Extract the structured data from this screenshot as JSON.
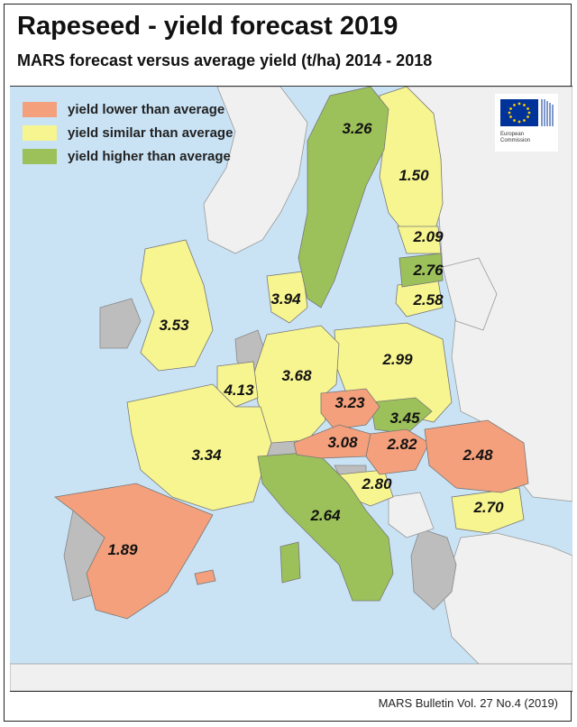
{
  "header": {
    "title": "Rapeseed - yield forecast 2019",
    "subtitle": "MARS forecast versus average yield (t/ha) 2014 - 2018"
  },
  "legend": {
    "items": [
      {
        "label": "yield lower than average",
        "color": "#f4a07c"
      },
      {
        "label": "yield similar than average",
        "color": "#f7f590"
      },
      {
        "label": "yield higher than average",
        "color": "#9cc15a"
      }
    ]
  },
  "colors": {
    "sea": "#c9e3f5",
    "non_eu": "#f0f0f0",
    "no_data": "#bdbdbd",
    "lower": "#f4a07c",
    "similar": "#f7f590",
    "higher": "#9cc15a"
  },
  "logo": {
    "text_line1": "European",
    "text_line2": "Commission"
  },
  "map_values": {
    "sweden": "3.26",
    "finland": "1.50",
    "estonia": "2.09",
    "latvia": "2.76",
    "lithuania": "2.58",
    "denmark": "3.94",
    "united_kingdom": "3.53",
    "poland": "2.99",
    "germany": "3.68",
    "benelux": "4.13",
    "czechia": "3.23",
    "slovakia": "3.45",
    "austria": "3.08",
    "hungary": "2.82",
    "romania": "2.48",
    "france": "3.34",
    "croatia": "2.80",
    "bulgaria": "2.70",
    "italy": "2.64",
    "spain": "1.89"
  },
  "footer": {
    "citation": "MARS Bulletin Vol. 27 No.4 (2019)"
  }
}
